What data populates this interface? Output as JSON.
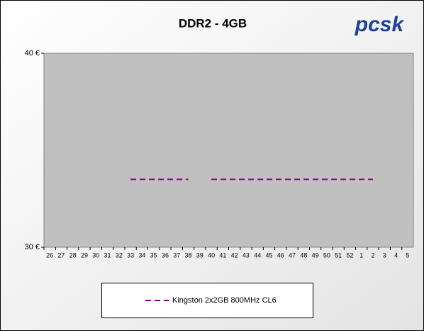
{
  "chart_data": {
    "type": "line",
    "title": "DDR2 - 4GB",
    "logo": "pcsk",
    "categories": [
      "26",
      "27",
      "28",
      "29",
      "30",
      "31",
      "32",
      "33",
      "34",
      "35",
      "36",
      "37",
      "38",
      "39",
      "40",
      "41",
      "42",
      "43",
      "44",
      "45",
      "46",
      "47",
      "48",
      "49",
      "50",
      "51",
      "52",
      "1",
      "2",
      "3",
      "4",
      "5"
    ],
    "series": [
      {
        "name": "Kingston 2x2GB 800MHz CL6",
        "color": "#800080",
        "dashed": true,
        "values": [
          null,
          null,
          null,
          null,
          null,
          null,
          null,
          33.5,
          33.5,
          33.5,
          33.5,
          33.5,
          33.5,
          null,
          33.5,
          33.5,
          33.5,
          33.5,
          33.5,
          33.5,
          33.5,
          33.5,
          33.5,
          33.5,
          33.5,
          33.5,
          33.5,
          33.5,
          33.5,
          null,
          null,
          null
        ]
      }
    ],
    "ylim": [
      30,
      40
    ],
    "yticks": [
      {
        "value": 30,
        "label": "30 €"
      },
      {
        "value": 40,
        "label": "40 €"
      }
    ],
    "grid": false,
    "legend": "bottom"
  }
}
